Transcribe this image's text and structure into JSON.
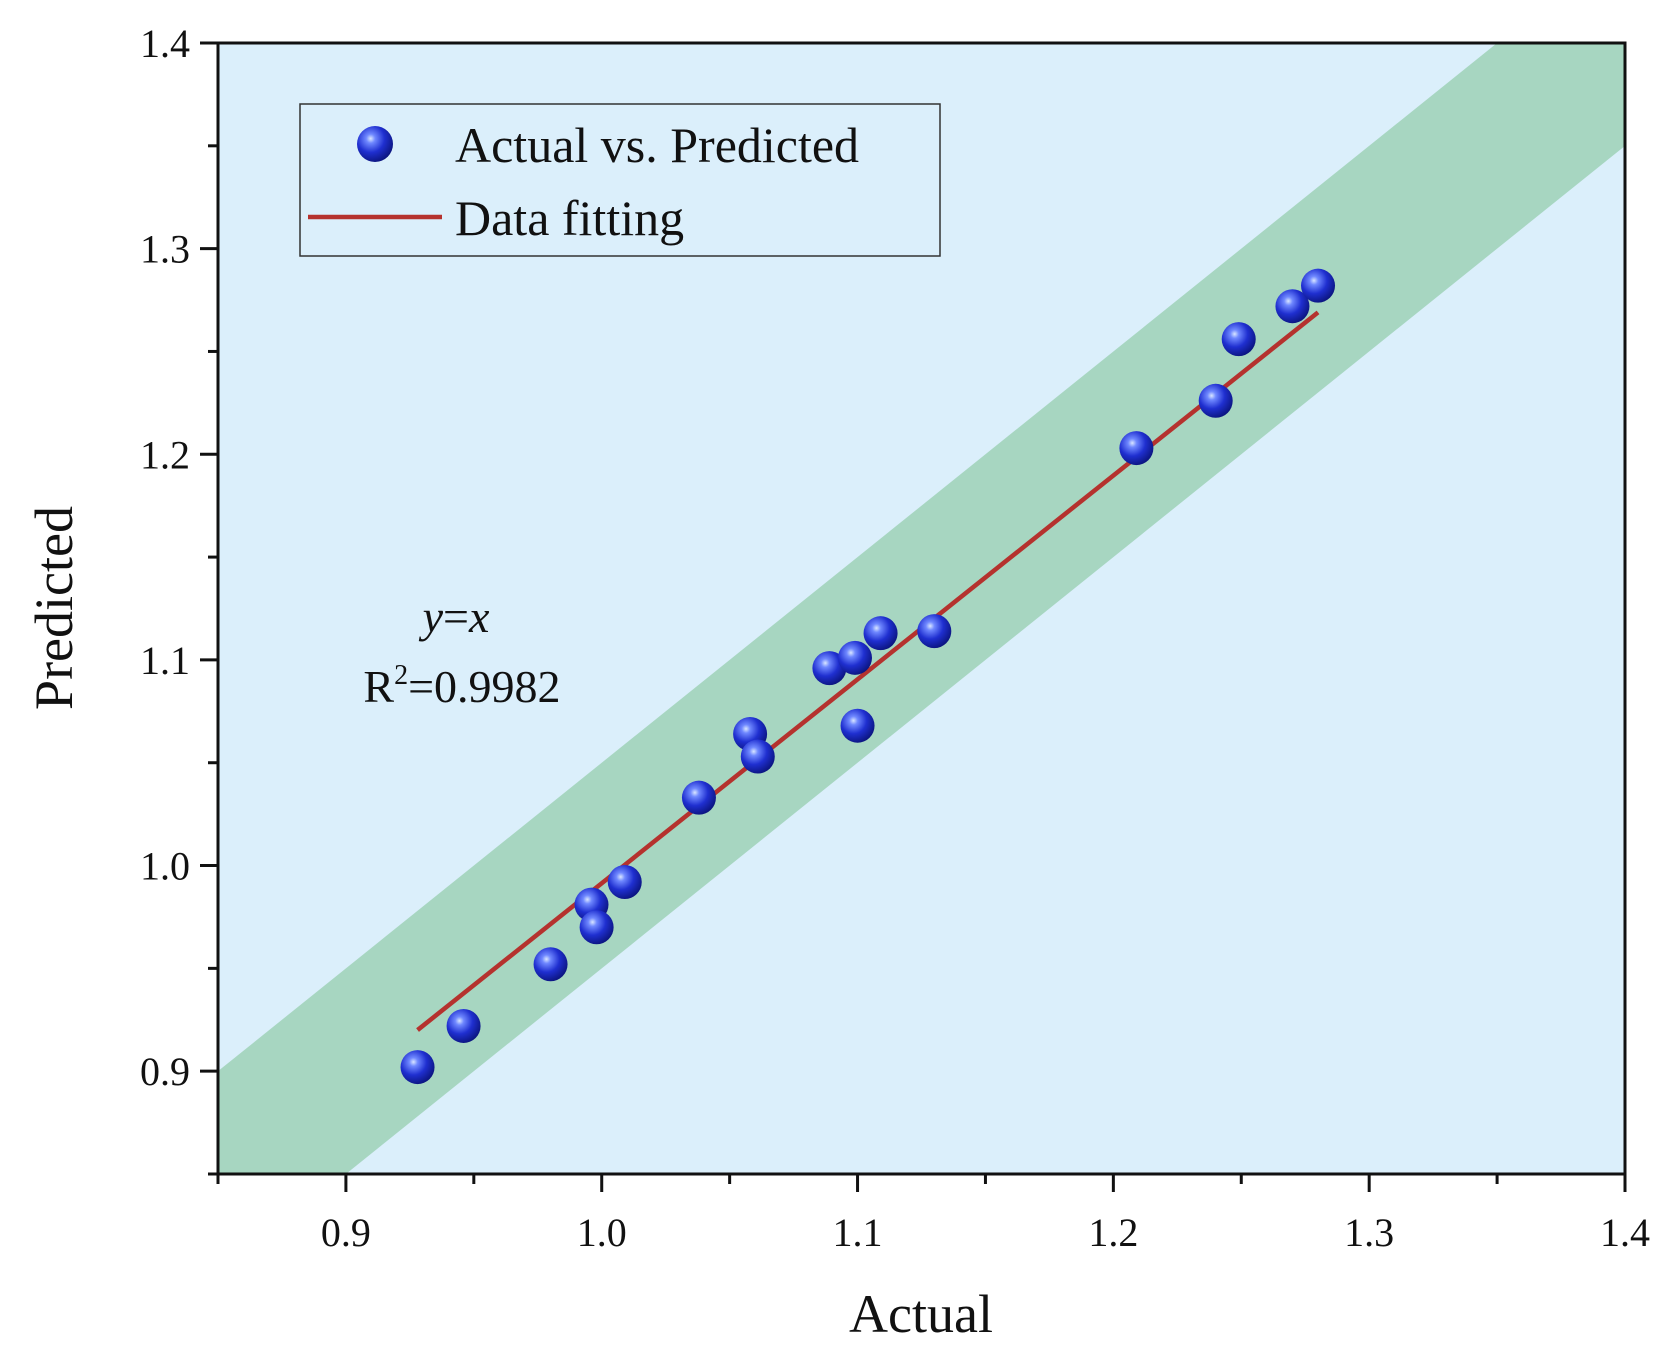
{
  "chart_data": {
    "type": "scatter",
    "title": "",
    "xlabel": "Actual",
    "ylabel": "Predicted",
    "xlim": [
      0.85,
      1.4
    ],
    "ylim": [
      0.85,
      1.4
    ],
    "x_ticks": [
      0.9,
      1.0,
      1.1,
      1.2,
      1.3,
      1.4
    ],
    "y_ticks": [
      0.9,
      1.0,
      1.1,
      1.2,
      1.3,
      1.4
    ],
    "x_tick_labels": [
      "0.9",
      "1.0",
      "1.1",
      "1.2",
      "1.3",
      "1.4"
    ],
    "y_tick_labels": [
      "0.9",
      "1.0",
      "1.1",
      "1.2",
      "1.3",
      "1.4"
    ],
    "background_color": "#dbeffb",
    "band": {
      "name": "y=x band",
      "offset": 0.05,
      "color": "#a7d6c1"
    },
    "series": [
      {
        "name": "Actual vs. Predicted",
        "type": "scatter",
        "color": "#1f2fd0",
        "points": [
          [
            0.928,
            0.902
          ],
          [
            0.946,
            0.922
          ],
          [
            0.98,
            0.952
          ],
          [
            0.996,
            0.981
          ],
          [
            0.998,
            0.97
          ],
          [
            1.009,
            0.992
          ],
          [
            1.038,
            1.033
          ],
          [
            1.058,
            1.064
          ],
          [
            1.061,
            1.053
          ],
          [
            1.089,
            1.096
          ],
          [
            1.099,
            1.101
          ],
          [
            1.1,
            1.068
          ],
          [
            1.109,
            1.113
          ],
          [
            1.13,
            1.114
          ],
          [
            1.209,
            1.203
          ],
          [
            1.24,
            1.226
          ],
          [
            1.249,
            1.256
          ],
          [
            1.27,
            1.272
          ],
          [
            1.28,
            1.282
          ]
        ]
      },
      {
        "name": "Data fitting",
        "type": "line",
        "color": "#b5322e",
        "points": [
          [
            0.928,
            0.92
          ],
          [
            1.28,
            1.269
          ]
        ]
      }
    ],
    "legend": {
      "position": "top-left",
      "entries": [
        "Actual vs. Predicted",
        "Data fitting"
      ]
    },
    "annotations": {
      "equation_y": "y",
      "equation_eq": "=",
      "equation_x": "x",
      "r2_base": "R",
      "r2_sup": "2",
      "r2_value": "=0.9982"
    }
  }
}
